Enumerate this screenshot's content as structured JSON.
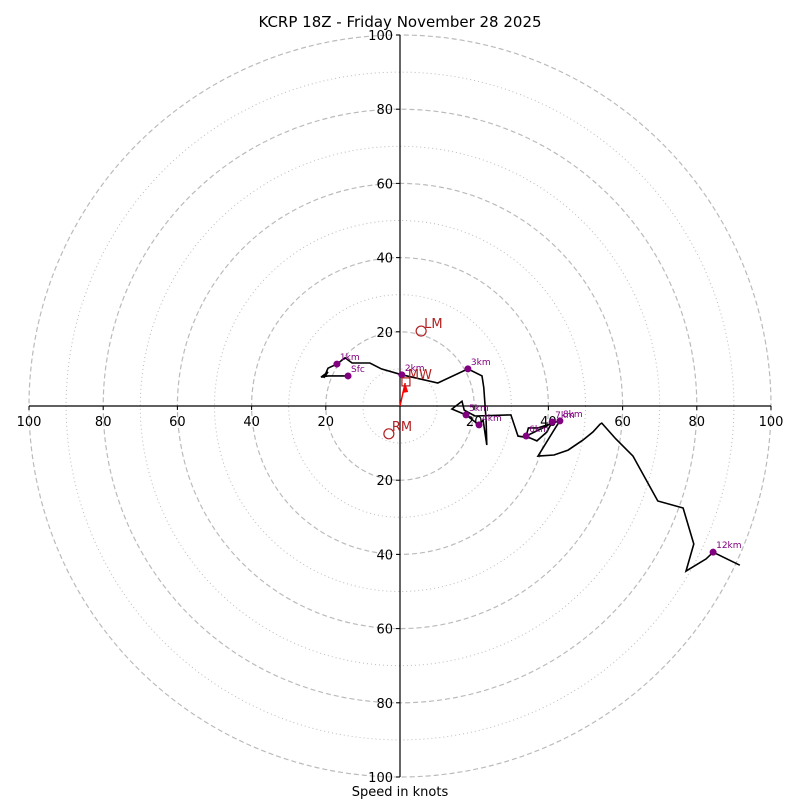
{
  "chart_data": {
    "type": "line",
    "subtype": "hodograph",
    "title": "KCRP 18Z - Friday November 28 2025",
    "xlabel": "Speed in knots",
    "ylabel": "",
    "range_knots": 100,
    "ring_dashed": [
      20,
      40,
      60,
      80,
      100
    ],
    "ring_dotted": [
      10,
      30,
      50,
      70,
      90
    ],
    "x_ticks": [
      {
        "value": -100,
        "label": "100"
      },
      {
        "value": -80,
        "label": "80"
      },
      {
        "value": -60,
        "label": "60"
      },
      {
        "value": -40,
        "label": "40"
      },
      {
        "value": -20,
        "label": "20"
      },
      {
        "value": 20,
        "label": "20"
      },
      {
        "value": 40,
        "label": "40"
      },
      {
        "value": 60,
        "label": "60"
      },
      {
        "value": 80,
        "label": "80"
      },
      {
        "value": 100,
        "label": "100"
      }
    ],
    "y_ticks": [
      {
        "value": 100,
        "label": "100"
      },
      {
        "value": 80,
        "label": "80"
      },
      {
        "value": 60,
        "label": "60"
      },
      {
        "value": 40,
        "label": "40"
      },
      {
        "value": 20,
        "label": "20"
      },
      {
        "value": -20,
        "label": "20"
      },
      {
        "value": -40,
        "label": "40"
      },
      {
        "value": -60,
        "label": "60"
      },
      {
        "value": -80,
        "label": "80"
      },
      {
        "value": -100,
        "label": "100"
      }
    ],
    "hodograph_uv": [
      [
        -14.0,
        8.1
      ],
      [
        -19.4,
        8.1
      ],
      [
        -21.3,
        7.8
      ],
      [
        -19.4,
        9.2
      ],
      [
        -20.5,
        7.6
      ],
      [
        -19.4,
        10.2
      ],
      [
        -17.0,
        11.3
      ],
      [
        -14.8,
        13.0
      ],
      [
        -12.9,
        11.6
      ],
      [
        -8.1,
        11.6
      ],
      [
        -5.0,
        10.0
      ],
      [
        0.5,
        8.4
      ],
      [
        10.2,
        6.2
      ],
      [
        18.3,
        10.0
      ],
      [
        22.1,
        8.1
      ],
      [
        22.6,
        4.9
      ],
      [
        23.2,
        -3.8
      ],
      [
        23.4,
        -10.5
      ],
      [
        22.4,
        -3.8
      ],
      [
        21.3,
        -5.1
      ],
      [
        17.8,
        -2.4
      ],
      [
        14.0,
        -0.8
      ],
      [
        16.7,
        1.3
      ],
      [
        17.3,
        -1.1
      ],
      [
        20.2,
        -2.7
      ],
      [
        29.9,
        -2.4
      ],
      [
        31.8,
        -8.1
      ],
      [
        35.0,
        -8.6
      ],
      [
        36.9,
        -9.4
      ],
      [
        39.6,
        -7.0
      ],
      [
        41.0,
        -4.3
      ],
      [
        39.6,
        -5.4
      ],
      [
        34.0,
        -8.1
      ],
      [
        34.6,
        -5.9
      ],
      [
        37.2,
        -5.9
      ],
      [
        43.1,
        -4.0
      ],
      [
        41.5,
        -6.5
      ],
      [
        37.2,
        -13.5
      ],
      [
        41.5,
        -13.2
      ],
      [
        45.3,
        -11.9
      ],
      [
        49.3,
        -9.2
      ],
      [
        52.0,
        -7.0
      ],
      [
        53.9,
        -4.9
      ],
      [
        54.4,
        -4.6
      ],
      [
        58.2,
        -8.9
      ],
      [
        62.8,
        -13.5
      ],
      [
        69.5,
        -25.6
      ],
      [
        76.3,
        -27.5
      ],
      [
        79.2,
        -37.2
      ],
      [
        77.1,
        -44.5
      ],
      [
        82.5,
        -41.2
      ],
      [
        84.4,
        -39.4
      ],
      [
        91.6,
        -42.9
      ]
    ],
    "height_markers": [
      {
        "label": "Sfc",
        "u": -14.0,
        "v": 8.1
      },
      {
        "label": "1km",
        "u": -17.0,
        "v": 11.3
      },
      {
        "label": "2km",
        "u": 0.5,
        "v": 8.4
      },
      {
        "label": "3km",
        "u": 18.3,
        "v": 10.0
      },
      {
        "label": "4km",
        "u": 21.3,
        "v": -5.1
      },
      {
        "label": "5km",
        "u": 17.8,
        "v": -2.4
      },
      {
        "label": "6km",
        "u": 34.0,
        "v": -8.1
      },
      {
        "label": "7km",
        "u": 41.0,
        "v": -4.3
      },
      {
        "label": "8km",
        "u": 43.1,
        "v": -4.0
      },
      {
        "label": "12km",
        "u": 84.4,
        "v": -39.4
      }
    ],
    "storm_motions": [
      {
        "label": "LM",
        "u": 5.7,
        "v": 20.2,
        "marker": "circle"
      },
      {
        "label": "RM",
        "u": -3.0,
        "v": -7.5,
        "marker": "circle"
      },
      {
        "label": "MW",
        "u": 1.6,
        "v": 6.5,
        "marker": "square"
      }
    ],
    "shear_vector": {
      "from": [
        0,
        0
      ],
      "to": [
        1.4,
        6.2
      ]
    },
    "colors": {
      "hodograph": "#000000",
      "height_marker": "#800080",
      "storm_motion": "#b22222",
      "shear_arrow": "#ff0000",
      "grid": "#bbbbbb"
    },
    "grid": true
  }
}
